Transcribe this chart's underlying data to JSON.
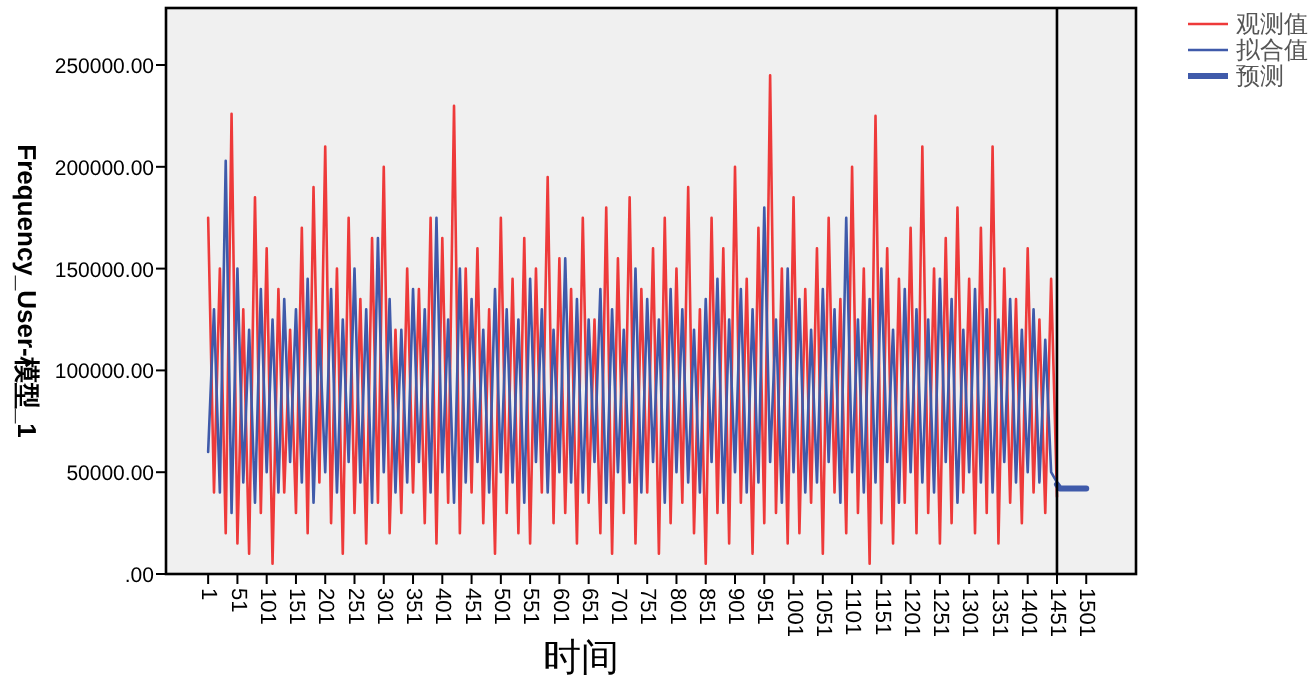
{
  "chart_data": {
    "type": "line",
    "xlabel": "时间",
    "ylabel": "Frequency_User-模型_1",
    "xlim": [
      -71,
      1586
    ],
    "ylim": [
      0,
      278000
    ],
    "xticks": [
      1,
      51,
      101,
      151,
      201,
      251,
      301,
      351,
      401,
      451,
      501,
      551,
      601,
      651,
      701,
      751,
      801,
      851,
      901,
      951,
      1001,
      1051,
      1101,
      1151,
      1201,
      1251,
      1301,
      1351,
      1401,
      1451,
      1501
    ],
    "yticks": [
      {
        "value": 0,
        "label": ".00"
      },
      {
        "value": 50000,
        "label": "50000.00"
      },
      {
        "value": 100000,
        "label": "100000.00"
      },
      {
        "value": 150000,
        "label": "150000.00"
      },
      {
        "value": 200000,
        "label": "200000.00"
      },
      {
        "value": 250000,
        "label": "250000.00"
      }
    ],
    "grid": false,
    "legend": "top right",
    "marker": "none",
    "line_style": "solid",
    "ref_lines": [
      {
        "axis": "x",
        "value": 1451,
        "color": "#000000"
      }
    ],
    "series": [
      {
        "name": "观测值",
        "color": "#ee3a3a",
        "x": [
          1,
          11,
          21,
          31,
          41,
          51,
          61,
          71,
          81,
          91,
          101,
          111,
          121,
          131,
          141,
          151,
          161,
          171,
          181,
          191,
          201,
          211,
          221,
          231,
          241,
          251,
          261,
          271,
          281,
          291,
          301,
          311,
          321,
          331,
          341,
          351,
          361,
          371,
          381,
          391,
          401,
          411,
          421,
          431,
          441,
          451,
          461,
          471,
          481,
          491,
          501,
          511,
          521,
          531,
          541,
          551,
          561,
          571,
          581,
          591,
          601,
          611,
          621,
          631,
          641,
          651,
          661,
          671,
          681,
          691,
          701,
          711,
          721,
          731,
          741,
          751,
          761,
          771,
          781,
          791,
          801,
          811,
          821,
          831,
          841,
          851,
          861,
          871,
          881,
          891,
          901,
          911,
          921,
          931,
          941,
          951,
          961,
          971,
          981,
          991,
          1001,
          1011,
          1021,
          1031,
          1041,
          1051,
          1061,
          1071,
          1081,
          1091,
          1101,
          1111,
          1121,
          1131,
          1141,
          1151,
          1161,
          1171,
          1181,
          1191,
          1201,
          1211,
          1221,
          1231,
          1241,
          1251,
          1261,
          1271,
          1281,
          1291,
          1301,
          1311,
          1321,
          1331,
          1341,
          1351,
          1361,
          1371,
          1381,
          1391,
          1401,
          1411,
          1421,
          1431,
          1441,
          1451
        ],
        "values": [
          175000,
          40000,
          150000,
          20000,
          226000,
          15000,
          130000,
          10000,
          185000,
          30000,
          160000,
          5000,
          140000,
          40000,
          120000,
          30000,
          170000,
          20000,
          190000,
          45000,
          210000,
          25000,
          150000,
          10000,
          175000,
          30000,
          135000,
          15000,
          165000,
          35000,
          200000,
          20000,
          120000,
          30000,
          150000,
          40000,
          140000,
          25000,
          175000,
          15000,
          165000,
          35000,
          230000,
          20000,
          150000,
          40000,
          160000,
          25000,
          130000,
          10000,
          175000,
          30000,
          145000,
          20000,
          165000,
          15000,
          150000,
          40000,
          195000,
          25000,
          155000,
          30000,
          140000,
          15000,
          175000,
          35000,
          125000,
          20000,
          180000,
          10000,
          155000,
          30000,
          185000,
          15000,
          140000,
          40000,
          160000,
          10000,
          175000,
          25000,
          150000,
          35000,
          190000,
          20000,
          130000,
          5000,
          175000,
          30000,
          160000,
          15000,
          200000,
          35000,
          145000,
          10000,
          170000,
          25000,
          245000,
          30000,
          150000,
          15000,
          185000,
          20000,
          140000,
          35000,
          160000,
          10000,
          175000,
          40000,
          135000,
          20000,
          200000,
          30000,
          150000,
          5000,
          225000,
          25000,
          160000,
          15000,
          145000,
          35000,
          170000,
          20000,
          210000,
          30000,
          150000,
          15000,
          165000,
          25000,
          180000,
          40000,
          145000,
          20000,
          170000,
          30000,
          210000,
          15000,
          150000,
          35000,
          135000,
          25000,
          160000,
          40000,
          125000,
          30000,
          145000,
          38000
        ]
      },
      {
        "name": "拟合值",
        "color": "#3f5aaa",
        "x": [
          1,
          11,
          21,
          31,
          41,
          51,
          61,
          71,
          81,
          91,
          101,
          111,
          121,
          131,
          141,
          151,
          161,
          171,
          181,
          191,
          201,
          211,
          221,
          231,
          241,
          251,
          261,
          271,
          281,
          291,
          301,
          311,
          321,
          331,
          341,
          351,
          361,
          371,
          381,
          391,
          401,
          411,
          421,
          431,
          441,
          451,
          461,
          471,
          481,
          491,
          501,
          511,
          521,
          531,
          541,
          551,
          561,
          571,
          581,
          591,
          601,
          611,
          621,
          631,
          641,
          651,
          661,
          671,
          681,
          691,
          701,
          711,
          721,
          731,
          741,
          751,
          761,
          771,
          781,
          791,
          801,
          811,
          821,
          831,
          841,
          851,
          861,
          871,
          881,
          891,
          901,
          911,
          921,
          931,
          941,
          951,
          961,
          971,
          981,
          991,
          1001,
          1011,
          1021,
          1031,
          1041,
          1051,
          1061,
          1071,
          1081,
          1091,
          1101,
          1111,
          1121,
          1131,
          1141,
          1151,
          1161,
          1171,
          1181,
          1191,
          1201,
          1211,
          1221,
          1231,
          1241,
          1251,
          1261,
          1271,
          1281,
          1291,
          1301,
          1311,
          1321,
          1331,
          1341,
          1351,
          1361,
          1371,
          1381,
          1391,
          1401,
          1411,
          1421,
          1431,
          1441,
          1451
        ],
        "values": [
          60000,
          130000,
          40000,
          203000,
          30000,
          150000,
          45000,
          120000,
          35000,
          140000,
          50000,
          125000,
          40000,
          135000,
          55000,
          130000,
          45000,
          145000,
          35000,
          120000,
          50000,
          140000,
          40000,
          125000,
          55000,
          150000,
          45000,
          130000,
          35000,
          165000,
          50000,
          135000,
          40000,
          120000,
          45000,
          140000,
          55000,
          130000,
          40000,
          175000,
          50000,
          125000,
          35000,
          150000,
          45000,
          135000,
          55000,
          120000,
          40000,
          140000,
          50000,
          130000,
          45000,
          125000,
          35000,
          145000,
          55000,
          130000,
          40000,
          120000,
          50000,
          155000,
          45000,
          135000,
          40000,
          125000,
          55000,
          140000,
          35000,
          130000,
          50000,
          120000,
          45000,
          150000,
          40000,
          135000,
          55000,
          125000,
          35000,
          140000,
          50000,
          130000,
          45000,
          120000,
          40000,
          135000,
          55000,
          145000,
          35000,
          125000,
          50000,
          140000,
          40000,
          130000,
          45000,
          180000,
          55000,
          125000,
          35000,
          150000,
          50000,
          135000,
          40000,
          120000,
          45000,
          140000,
          55000,
          130000,
          35000,
          175000,
          50000,
          125000,
          40000,
          135000,
          45000,
          150000,
          55000,
          120000,
          35000,
          140000,
          50000,
          130000,
          45000,
          125000,
          40000,
          145000,
          55000,
          135000,
          35000,
          120000,
          50000,
          140000,
          45000,
          130000,
          40000,
          125000,
          55000,
          135000,
          45000,
          120000,
          50000,
          130000,
          45000,
          115000,
          50000,
          45000
        ]
      },
      {
        "name": "预测",
        "color": "#3f5aaa",
        "x": [
          1451,
          1456,
          1501
        ],
        "values": [
          44000,
          42000,
          42000
        ]
      }
    ]
  }
}
